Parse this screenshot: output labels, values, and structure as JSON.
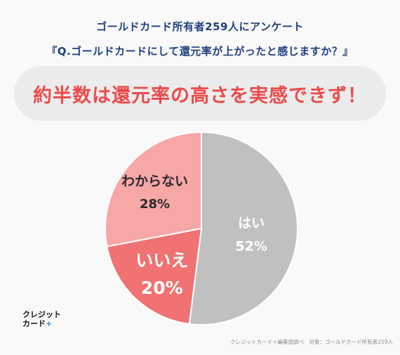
{
  "header": {
    "line1": "ゴールドカード所有者259人にアンケート",
    "line2": "『Q.ゴールドカードにして還元率が上がったと感じますか？』"
  },
  "banner": {
    "text": "約半数は還元率の高さを実感できず！"
  },
  "chart_data": {
    "type": "pie",
    "title": "",
    "slices": [
      {
        "label": "はい",
        "value": 52,
        "display": "52%",
        "color": "#c0c0c0"
      },
      {
        "label": "いいえ",
        "value": 20,
        "display": "20%",
        "color": "#f07272"
      },
      {
        "label": "わからない",
        "value": 28,
        "display": "28%",
        "color": "#f7a7a7"
      }
    ],
    "start": "top",
    "direction": "clockwise"
  },
  "logo": {
    "line1": "クレジット",
    "line2": "カード",
    "plus": "+"
  },
  "footer": {
    "source": "クレジットカード＋編集部調べ　対象：ゴールドカード所有者259人"
  }
}
